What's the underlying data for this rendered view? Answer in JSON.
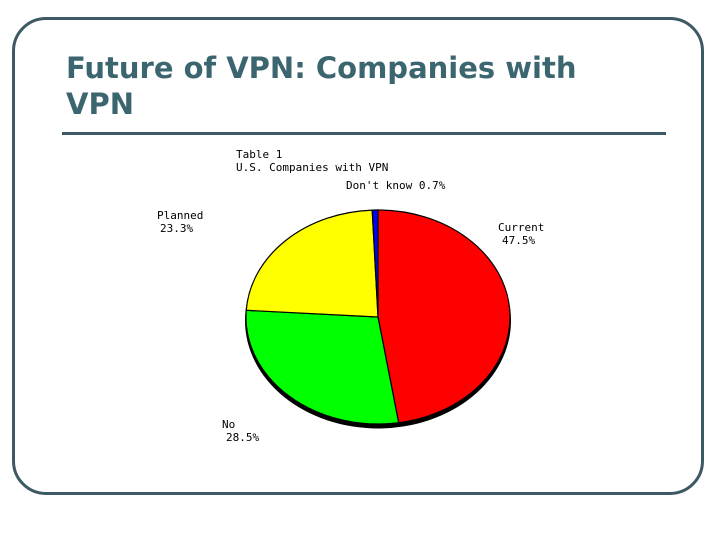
{
  "slide": {
    "title_line1": "Future of VPN: Companies with",
    "title_line2": "VPN"
  },
  "chart_data": {
    "type": "pie",
    "title": "Table 1",
    "subtitle": "U.S. Companies with VPN",
    "slices": [
      {
        "label": "Current",
        "value_label": "47.5%",
        "value": 47.5,
        "color": "#ff0000"
      },
      {
        "label": "No",
        "value_label": "28.5%",
        "value": 28.5,
        "color": "#00ff00"
      },
      {
        "label": "Planned",
        "value_label": "23.3%",
        "value": 23.3,
        "color": "#ffff00"
      },
      {
        "label": "Don't know",
        "value_label": "0.7%",
        "value": 0.7,
        "color": "#0000ff"
      }
    ]
  }
}
